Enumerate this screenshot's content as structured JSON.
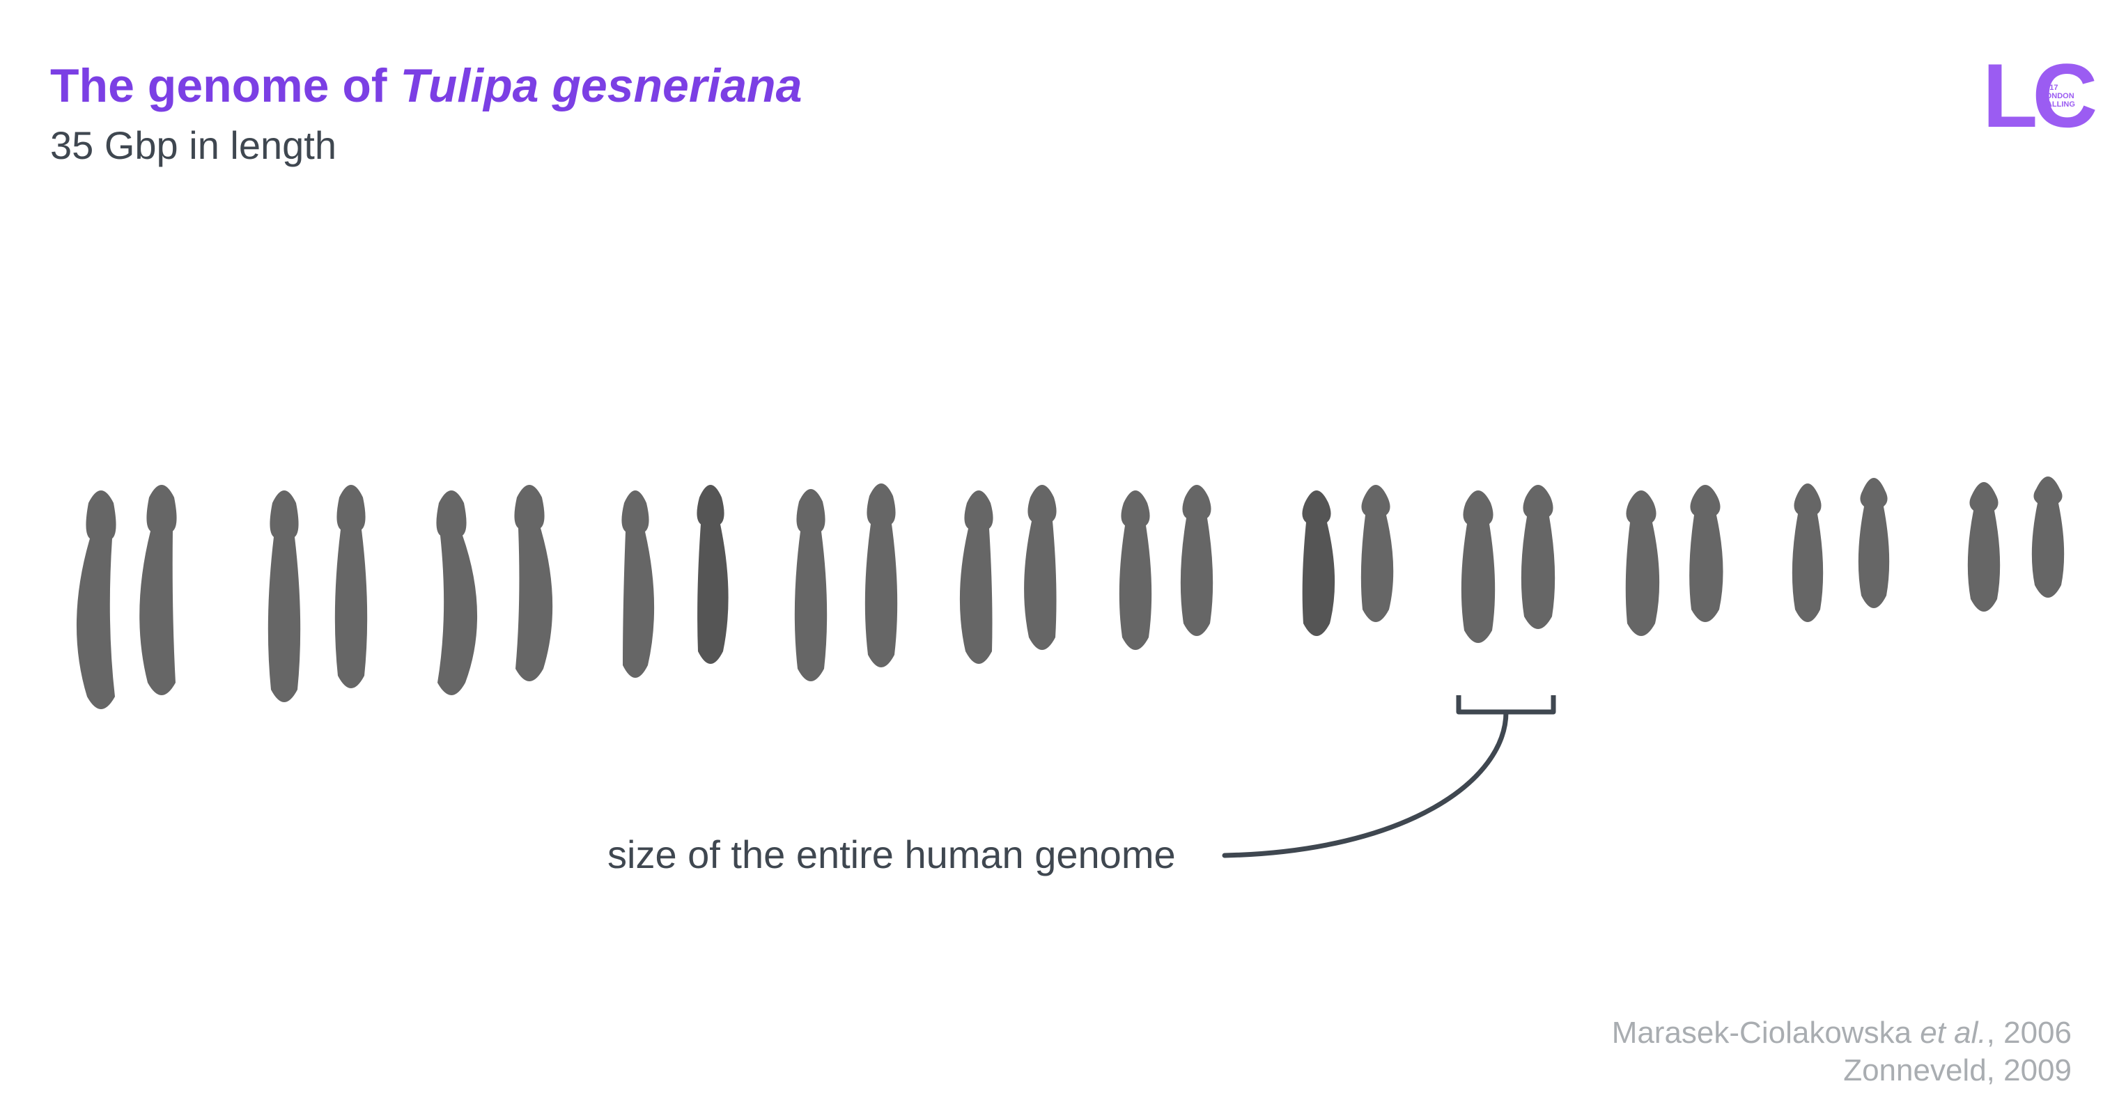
{
  "slide": {
    "title_prefix": "The genome of ",
    "title_species": "Tulipa gesneriana",
    "subtitle": "35 Gbp in length"
  },
  "logo": {
    "letters": "LC",
    "year": "2017",
    "line1": "LONDON",
    "line2": "CALLING",
    "color": "#9b5cf2"
  },
  "karyotype": {
    "chromosome_pairs": 12,
    "chromosome_color": "#555555",
    "highlighted_pair": 9
  },
  "annotation": {
    "text": "size of the entire human genome"
  },
  "citation": {
    "line1_authors": "Marasek-Ciolakowska ",
    "line1_etal": "et al.",
    "line1_year": ", 2006",
    "line2": "Zonneveld, 2009"
  },
  "colors": {
    "title": "#7b3fe4",
    "text": "#3f4750",
    "citation": "#a9adb1"
  }
}
